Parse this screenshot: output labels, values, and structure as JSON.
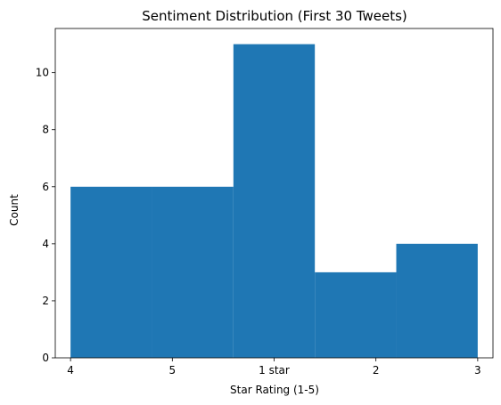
{
  "chart_data": {
    "type": "bar",
    "title": "Sentiment Distribution (First 30 Tweets)",
    "xlabel": "Star Rating (1-5)",
    "ylabel": "Count",
    "ylim": [
      0,
      11.55
    ],
    "xlim": [
      -0.15,
      4.15
    ],
    "yticks": [
      0,
      2,
      4,
      6,
      8,
      10
    ],
    "xticks": [
      {
        "x": 0,
        "label": "4"
      },
      {
        "x": 1,
        "label": "5"
      },
      {
        "x": 2,
        "label": "1 star"
      },
      {
        "x": 3,
        "label": "2"
      },
      {
        "x": 4,
        "label": "3"
      }
    ],
    "bins": [
      {
        "x_start": 0.0,
        "x_end": 0.8,
        "count": 6
      },
      {
        "x_start": 0.8,
        "x_end": 1.6,
        "count": 6
      },
      {
        "x_start": 1.6,
        "x_end": 2.4,
        "count": 11
      },
      {
        "x_start": 2.4,
        "x_end": 3.2,
        "count": 3
      },
      {
        "x_start": 3.2,
        "x_end": 4.0,
        "count": 4
      }
    ],
    "bar_color": "#1f77b4",
    "grid": false,
    "legend": "none"
  }
}
